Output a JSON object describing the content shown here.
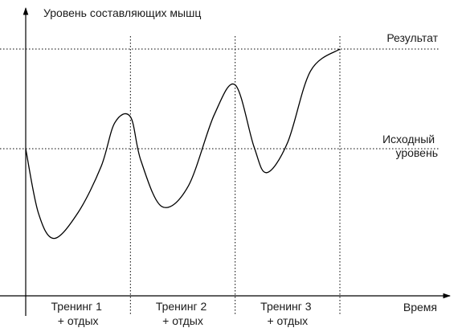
{
  "chart_data": {
    "type": "line",
    "title": "",
    "ylabel": "Уровень составляющих мышц",
    "xlabel": "Время",
    "reference_levels": [
      {
        "label": "Результат",
        "value": 2.5
      },
      {
        "label_lines": [
          "Исходный",
          "уровень"
        ],
        "value": 0
      }
    ],
    "phases": [
      {
        "label_lines": [
          "Тренинг 1",
          "+ отдых"
        ]
      },
      {
        "label_lines": [
          "Тренинг 2",
          "+ отдых"
        ]
      },
      {
        "label_lines": [
          "Тренинг 3",
          "+ отдых"
        ]
      }
    ],
    "xlim": [
      0,
      3
    ],
    "ylim": [
      -3.6,
      3.0
    ],
    "series": [
      {
        "points": [
          [
            0.0,
            0.0
          ],
          [
            0.12,
            -1.6
          ],
          [
            0.27,
            -2.25
          ],
          [
            0.5,
            -1.6
          ],
          [
            0.72,
            -0.45
          ],
          [
            0.85,
            0.65
          ],
          [
            1.0,
            0.8
          ],
          [
            1.1,
            -0.3
          ],
          [
            1.3,
            -1.45
          ],
          [
            1.55,
            -0.95
          ],
          [
            1.8,
            0.85
          ],
          [
            2.0,
            1.6
          ],
          [
            2.18,
            0.05
          ],
          [
            2.3,
            -0.6
          ],
          [
            2.5,
            0.15
          ],
          [
            2.72,
            1.95
          ],
          [
            3.0,
            2.5
          ]
        ]
      }
    ]
  }
}
